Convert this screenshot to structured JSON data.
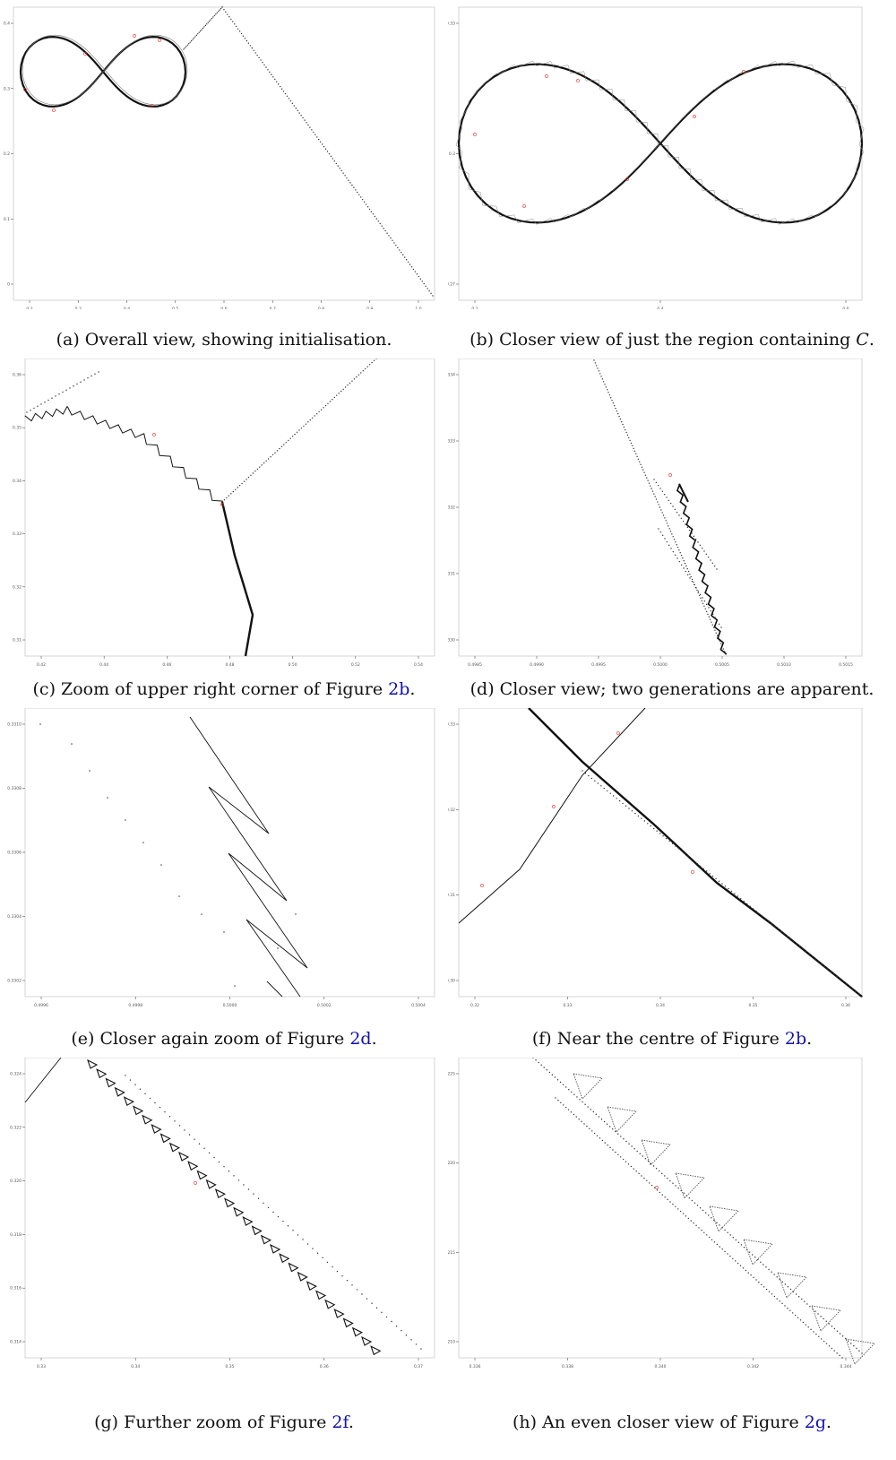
{
  "figure": {
    "panels": [
      {
        "id": "a",
        "label": "(a)",
        "text": "Overall view, showing initialisation.",
        "x_ticks": [
          "0.2",
          "0.3",
          "0.4",
          "0.5",
          "0.6",
          "0.7",
          "0.8",
          "0.9",
          "1.0"
        ],
        "y_ticks": [
          "0",
          "0.1",
          "0.2",
          "0.3",
          "0.4"
        ]
      },
      {
        "id": "b",
        "label": "(b)",
        "text_before": "Closer view of just the region containing ",
        "math": "C",
        "text_after": ".",
        "x_ticks": [
          "0.2",
          "0.4",
          "0.6"
        ],
        "y_ticks": [
          "0.27",
          "0.3",
          "0.33"
        ]
      },
      {
        "id": "c",
        "label": "(c)",
        "text_before": "Zoom of upper right corner of Figure ",
        "ref": "2b",
        "text_after": ".",
        "x_ticks": [
          "0.42",
          "0.44",
          "0.46",
          "0.48",
          "0.50",
          "0.52",
          "0.54"
        ],
        "y_ticks": [
          "0.31",
          "0.32",
          "0.33",
          "0.34",
          "0.35",
          "0.36"
        ]
      },
      {
        "id": "d",
        "label": "(d)",
        "text": "Closer view; two generations are apparent.",
        "x_ticks": [
          "0.4985",
          "0.4990",
          "0.4995",
          "0.5000",
          "0.5005",
          "0.5010",
          "0.5015"
        ],
        "y_ticks": [
          "0.330",
          "0.331",
          "0.332",
          "0.333",
          "0.334"
        ]
      },
      {
        "id": "e",
        "label": "(e)",
        "text_before": "Closer again zoom of Figure ",
        "ref": "2d",
        "text_after": ".",
        "x_ticks": [
          "0.4996",
          "0.4998",
          "0.5000",
          "0.5002",
          "0.5004"
        ],
        "y_ticks": [
          "0.3302",
          "0.3304",
          "0.3306",
          "0.3308",
          "0.3310"
        ]
      },
      {
        "id": "f",
        "label": "(f)",
        "text_before": "Near the centre of Figure ",
        "ref": "2b",
        "text_after": ".",
        "x_ticks": [
          "0.32",
          "0.33",
          "0.34",
          "0.35",
          "0.36"
        ],
        "y_ticks": [
          "0.30",
          "0.31",
          "0.32",
          "0.33"
        ]
      },
      {
        "id": "g",
        "label": "(g)",
        "text_before": "Further zoom of Figure ",
        "ref": "2f",
        "text_after": ".",
        "x_ticks": [
          "0.33",
          "0.34",
          "0.35",
          "0.36",
          "0.37"
        ],
        "y_ticks": [
          "0.314",
          "0.316",
          "0.318",
          "0.320",
          "0.322",
          "0.324"
        ]
      },
      {
        "id": "h",
        "label": "(h)",
        "text_before": "An even closer view of Figure ",
        "ref": "2g",
        "text_after": ".",
        "x_ticks": [
          "0.336",
          "0.338",
          "0.340",
          "0.342",
          "0.344"
        ],
        "y_ticks": [
          "0.3210",
          "0.3215",
          "0.3220",
          "0.3225"
        ]
      }
    ]
  },
  "colors": {
    "curve": "#111111",
    "marker": "#e03030",
    "ref_link": "#1010b0",
    "axis": "#555555"
  }
}
